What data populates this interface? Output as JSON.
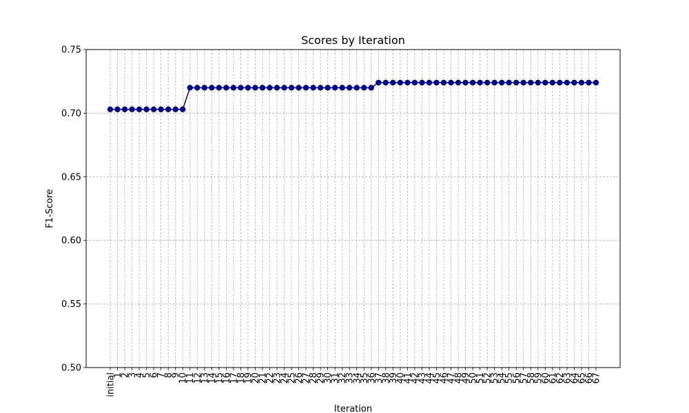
{
  "chart_data": {
    "type": "line",
    "title": "Scores by Iteration",
    "xlabel": "Iteration",
    "ylabel": "F1-Score",
    "ylim": [
      0.5,
      0.75
    ],
    "yticks": [
      "0.50",
      "0.55",
      "0.60",
      "0.65",
      "0.70",
      "0.75"
    ],
    "grid": true,
    "categories": [
      "initial",
      "1",
      "2",
      "3",
      "4",
      "5",
      "6",
      "7",
      "8",
      "9",
      "10",
      "11",
      "12",
      "13",
      "14",
      "15",
      "16",
      "17",
      "18",
      "19",
      "20",
      "21",
      "22",
      "23",
      "24",
      "25",
      "26",
      "27",
      "28",
      "29",
      "30",
      "31",
      "32",
      "33",
      "34",
      "35",
      "36",
      "37",
      "38",
      "39",
      "40",
      "41",
      "42",
      "43",
      "44",
      "45",
      "46",
      "47",
      "48",
      "49",
      "50",
      "51",
      "52",
      "53",
      "54",
      "55",
      "56",
      "57",
      "58",
      "59",
      "60",
      "61",
      "62",
      "63",
      "64",
      "65",
      "66",
      "67"
    ],
    "series": [
      {
        "color": "#00008b",
        "marker": "circle",
        "values": [
          0.703,
          0.703,
          0.703,
          0.703,
          0.703,
          0.703,
          0.703,
          0.703,
          0.703,
          0.703,
          0.703,
          0.72,
          0.72,
          0.72,
          0.72,
          0.72,
          0.72,
          0.72,
          0.72,
          0.72,
          0.72,
          0.72,
          0.72,
          0.72,
          0.72,
          0.72,
          0.72,
          0.72,
          0.72,
          0.72,
          0.72,
          0.72,
          0.72,
          0.72,
          0.72,
          0.72,
          0.72,
          0.724,
          0.724,
          0.724,
          0.724,
          0.724,
          0.724,
          0.724,
          0.724,
          0.724,
          0.724,
          0.724,
          0.724,
          0.724,
          0.724,
          0.724,
          0.724,
          0.724,
          0.724,
          0.724,
          0.724,
          0.724,
          0.724,
          0.724,
          0.724,
          0.724,
          0.724,
          0.724,
          0.724,
          0.724,
          0.724,
          0.724
        ]
      }
    ]
  }
}
